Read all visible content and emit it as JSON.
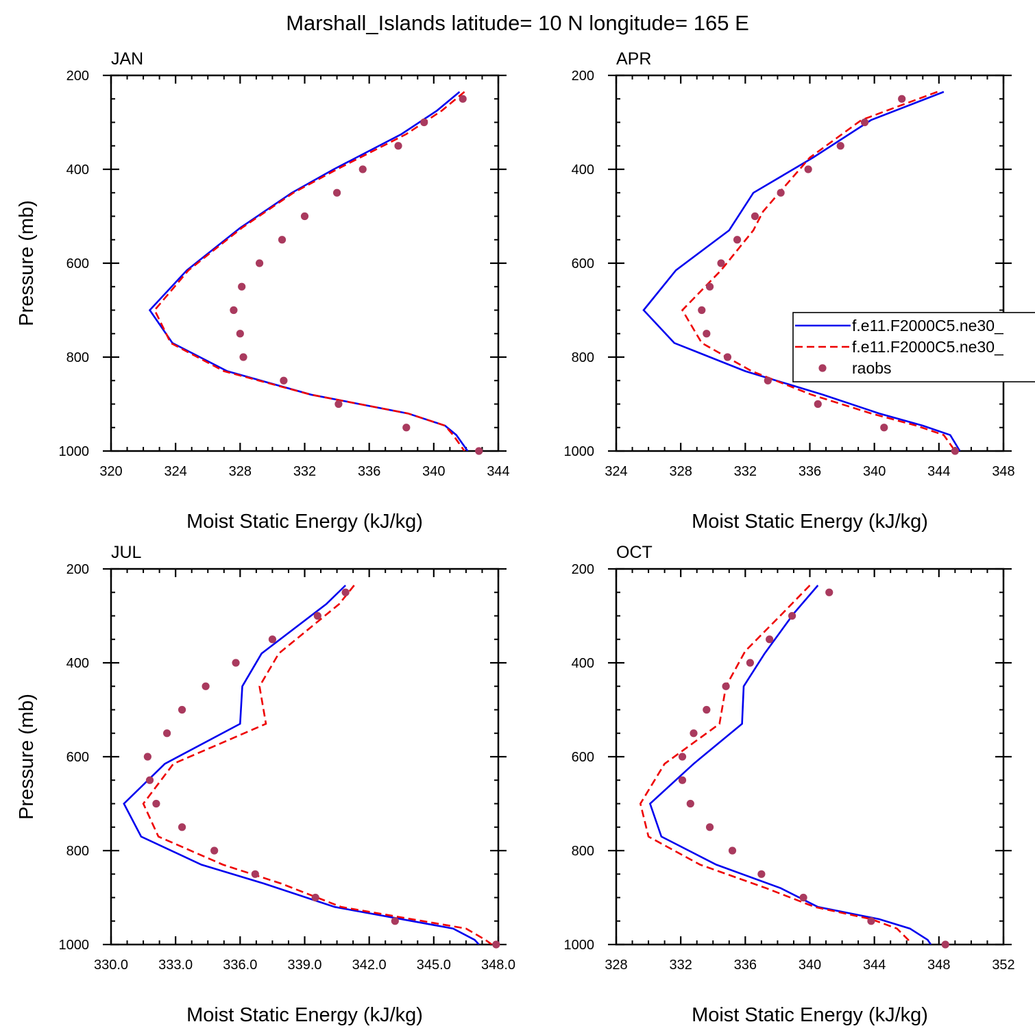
{
  "figure": {
    "title": "Marshall_Islands  latitude= 10 N longitude= 165 E"
  },
  "colors": {
    "model1": "#0000ee",
    "model2": "#ee0000",
    "raobs": "#a93a5e",
    "axis": "#000000"
  },
  "legend": {
    "entries": [
      {
        "label": "f.e11.F2000C5.ne30_",
        "style": "solid",
        "color": "#0000ee"
      },
      {
        "label": "f.e11.F2000C5.ne30_",
        "style": "dashed",
        "color": "#ee0000"
      },
      {
        "label": "raobs",
        "style": "marker",
        "color": "#a93a5e"
      }
    ]
  },
  "chart_data": [
    {
      "type": "line",
      "title": "JAN",
      "xlabel": "Moist Static Energy (kJ/kg)",
      "ylabel": "Pressure (mb)",
      "xlim": [
        320,
        344
      ],
      "ylim": [
        200,
        1000
      ],
      "y_inverted": true,
      "xticks": [
        320,
        324,
        328,
        332,
        336,
        340,
        344
      ],
      "xtick_labels": [
        "320",
        "324",
        "328",
        "332",
        "336",
        "340",
        "344"
      ],
      "yticks": [
        200,
        400,
        600,
        800,
        1000
      ],
      "ytick_labels": [
        "200",
        "400",
        "600",
        "800",
        "1000"
      ],
      "series": [
        {
          "name": "f.e11.F2000C5.ne30_",
          "style": "solid",
          "color": "#0000ee",
          "points": [
            [
              341.6,
              235
            ],
            [
              340.2,
              275
            ],
            [
              338.0,
              325
            ],
            [
              333.8,
              400
            ],
            [
              331.2,
              450
            ],
            [
              328.0,
              525
            ],
            [
              324.7,
              615
            ],
            [
              322.4,
              700
            ],
            [
              323.8,
              770
            ],
            [
              327.2,
              830
            ],
            [
              332.4,
              880
            ],
            [
              338.4,
              920
            ],
            [
              340.7,
              946
            ],
            [
              341.4,
              966
            ],
            [
              342.1,
              1000
            ]
          ]
        },
        {
          "name": "f.e11.F2000C5.ne30_",
          "style": "dashed",
          "color": "#ee0000",
          "points": [
            [
              341.9,
              235
            ],
            [
              340.5,
              275
            ],
            [
              338.3,
              325
            ],
            [
              334.0,
              400
            ],
            [
              331.3,
              450
            ],
            [
              328.1,
              525
            ],
            [
              324.8,
              615
            ],
            [
              322.7,
              700
            ],
            [
              323.7,
              770
            ],
            [
              327.0,
              830
            ],
            [
              332.4,
              880
            ],
            [
              338.4,
              920
            ],
            [
              340.7,
              946
            ],
            [
              341.2,
              966
            ],
            [
              341.9,
              1000
            ]
          ]
        },
        {
          "name": "raobs",
          "style": "marker",
          "color": "#a93a5e",
          "points": [
            [
              341.8,
              250
            ],
            [
              339.4,
              300
            ],
            [
              337.8,
              350
            ],
            [
              335.6,
              400
            ],
            [
              334.0,
              450
            ],
            [
              332.0,
              500
            ],
            [
              330.6,
              550
            ],
            [
              329.2,
              600
            ],
            [
              328.1,
              650
            ],
            [
              327.6,
              700
            ],
            [
              328.0,
              750
            ],
            [
              328.2,
              800
            ],
            [
              330.7,
              850
            ],
            [
              334.1,
              900
            ],
            [
              338.3,
              950
            ],
            [
              342.8,
              1000
            ]
          ]
        }
      ]
    },
    {
      "type": "line",
      "title": "APR",
      "xlabel": "Moist Static Energy (kJ/kg)",
      "ylabel": "",
      "xlim": [
        324,
        348
      ],
      "ylim": [
        200,
        1000
      ],
      "y_inverted": true,
      "xticks": [
        324,
        328,
        332,
        336,
        340,
        344,
        348
      ],
      "xtick_labels": [
        "324",
        "328",
        "332",
        "336",
        "340",
        "344",
        "348"
      ],
      "yticks": [
        200,
        400,
        600,
        800,
        1000
      ],
      "ytick_labels": [
        "200",
        "400",
        "600",
        "800",
        "1000"
      ],
      "series": [
        {
          "name": "f.e11.F2000C5.ne30_",
          "style": "solid",
          "color": "#0000ee",
          "points": [
            [
              344.3,
              235
            ],
            [
              339.8,
              295
            ],
            [
              336.2,
              375
            ],
            [
              332.5,
              450
            ],
            [
              331.0,
              530
            ],
            [
              327.7,
              615
            ],
            [
              325.7,
              700
            ],
            [
              327.6,
              770
            ],
            [
              332.0,
              830
            ],
            [
              336.8,
              880
            ],
            [
              340.3,
              920
            ],
            [
              343.0,
              946
            ],
            [
              344.7,
              966
            ],
            [
              345.3,
              1000
            ]
          ]
        },
        {
          "name": "f.e11.F2000C5.ne30_",
          "style": "dashed",
          "color": "#ee0000",
          "points": [
            [
              343.9,
              235
            ],
            [
              339.2,
              295
            ],
            [
              336.0,
              375
            ],
            [
              334.1,
              450
            ],
            [
              333.1,
              490
            ],
            [
              332.5,
              530
            ],
            [
              330.5,
              615
            ],
            [
              328.1,
              700
            ],
            [
              329.3,
              770
            ],
            [
              332.4,
              830
            ],
            [
              336.1,
              880
            ],
            [
              339.8,
              920
            ],
            [
              342.6,
              946
            ],
            [
              344.3,
              966
            ],
            [
              345.0,
              1000
            ]
          ]
        },
        {
          "name": "raobs",
          "style": "marker",
          "color": "#a93a5e",
          "points": [
            [
              341.7,
              250
            ],
            [
              339.4,
              300
            ],
            [
              337.9,
              350
            ],
            [
              335.9,
              400
            ],
            [
              334.2,
              450
            ],
            [
              332.6,
              500
            ],
            [
              331.5,
              550
            ],
            [
              330.5,
              600
            ],
            [
              329.8,
              650
            ],
            [
              329.3,
              700
            ],
            [
              329.6,
              750
            ],
            [
              330.9,
              800
            ],
            [
              333.4,
              850
            ],
            [
              336.5,
              900
            ],
            [
              340.6,
              950
            ],
            [
              345.0,
              1000
            ]
          ]
        }
      ]
    },
    {
      "type": "line",
      "title": "JUL",
      "xlabel": "Moist Static Energy (kJ/kg)",
      "ylabel": "Pressure (mb)",
      "xlim": [
        330,
        348
      ],
      "ylim": [
        200,
        1000
      ],
      "y_inverted": true,
      "xticks": [
        330,
        333,
        336,
        339,
        342,
        345,
        348
      ],
      "xtick_labels": [
        "330.0",
        "333.0",
        "336.0",
        "339.0",
        "342.0",
        "345.0",
        "348.0"
      ],
      "yticks": [
        200,
        400,
        600,
        800,
        1000
      ],
      "ytick_labels": [
        "200",
        "400",
        "600",
        "800",
        "1000"
      ],
      "series": [
        {
          "name": "f.e11.F2000C5.ne30_",
          "style": "solid",
          "color": "#0000ee",
          "points": [
            [
              340.9,
              235
            ],
            [
              340.0,
              275
            ],
            [
              337.0,
              380
            ],
            [
              336.1,
              450
            ],
            [
              336.0,
              530
            ],
            [
              332.5,
              615
            ],
            [
              330.6,
              700
            ],
            [
              331.4,
              770
            ],
            [
              334.2,
              830
            ],
            [
              337.1,
              870
            ],
            [
              340.4,
              920
            ],
            [
              345.9,
              966
            ],
            [
              346.9,
              990
            ],
            [
              347.1,
              1000
            ]
          ]
        },
        {
          "name": "f.e11.F2000C5.ne30_",
          "style": "dashed",
          "color": "#ee0000",
          "points": [
            [
              341.3,
              235
            ],
            [
              340.6,
              275
            ],
            [
              337.8,
              380
            ],
            [
              336.9,
              450
            ],
            [
              337.2,
              530
            ],
            [
              332.9,
              615
            ],
            [
              331.5,
              700
            ],
            [
              332.2,
              770
            ],
            [
              335.2,
              830
            ],
            [
              337.9,
              870
            ],
            [
              340.7,
              920
            ],
            [
              346.5,
              966
            ],
            [
              347.4,
              990
            ],
            [
              347.7,
              1000
            ]
          ]
        },
        {
          "name": "raobs",
          "style": "marker",
          "color": "#a93a5e",
          "points": [
            [
              340.9,
              250
            ],
            [
              339.6,
              300
            ],
            [
              337.5,
              350
            ],
            [
              335.8,
              400
            ],
            [
              334.4,
              450
            ],
            [
              333.3,
              500
            ],
            [
              332.6,
              550
            ],
            [
              331.7,
              600
            ],
            [
              331.8,
              650
            ],
            [
              332.1,
              700
            ],
            [
              333.3,
              750
            ],
            [
              334.8,
              800
            ],
            [
              336.7,
              850
            ],
            [
              339.5,
              900
            ],
            [
              343.2,
              950
            ],
            [
              347.9,
              1000
            ]
          ]
        }
      ]
    },
    {
      "type": "line",
      "title": "OCT",
      "xlabel": "Moist Static Energy (kJ/kg)",
      "ylabel": "",
      "xlim": [
        328,
        352
      ],
      "ylim": [
        200,
        1000
      ],
      "y_inverted": true,
      "xticks": [
        328,
        332,
        336,
        340,
        344,
        348,
        352
      ],
      "xtick_labels": [
        "328",
        "332",
        "336",
        "340",
        "344",
        "348",
        "352"
      ],
      "yticks": [
        200,
        400,
        600,
        800,
        1000
      ],
      "ytick_labels": [
        "200",
        "400",
        "600",
        "800",
        "1000"
      ],
      "series": [
        {
          "name": "f.e11.F2000C5.ne30_",
          "style": "solid",
          "color": "#0000ee",
          "points": [
            [
              340.5,
              235
            ],
            [
              339.0,
              295
            ],
            [
              337.2,
              380
            ],
            [
              335.9,
              450
            ],
            [
              335.8,
              530
            ],
            [
              332.8,
              615
            ],
            [
              330.1,
              700
            ],
            [
              330.8,
              770
            ],
            [
              334.2,
              830
            ],
            [
              338.2,
              880
            ],
            [
              340.5,
              920
            ],
            [
              344.3,
              946
            ],
            [
              346.2,
              966
            ],
            [
              347.3,
              990
            ],
            [
              347.5,
              1000
            ]
          ]
        },
        {
          "name": "f.e11.F2000C5.ne30_",
          "style": "dashed",
          "color": "#ee0000",
          "points": [
            [
              340.0,
              235
            ],
            [
              338.3,
              295
            ],
            [
              336.0,
              375
            ],
            [
              334.8,
              450
            ],
            [
              334.4,
              530
            ],
            [
              331.0,
              615
            ],
            [
              329.5,
              700
            ],
            [
              330.0,
              770
            ],
            [
              333.2,
              830
            ],
            [
              337.3,
              880
            ],
            [
              340.3,
              920
            ],
            [
              343.8,
              946
            ],
            [
              345.4,
              966
            ],
            [
              346.1,
              990
            ],
            [
              346.2,
              1000
            ]
          ]
        },
        {
          "name": "raobs",
          "style": "marker",
          "color": "#a93a5e",
          "points": [
            [
              341.2,
              250
            ],
            [
              338.9,
              300
            ],
            [
              337.5,
              350
            ],
            [
              336.3,
              400
            ],
            [
              334.8,
              450
            ],
            [
              333.6,
              500
            ],
            [
              332.8,
              550
            ],
            [
              332.1,
              600
            ],
            [
              332.1,
              650
            ],
            [
              332.6,
              700
            ],
            [
              333.8,
              750
            ],
            [
              335.2,
              800
            ],
            [
              337.0,
              850
            ],
            [
              339.6,
              900
            ],
            [
              343.8,
              950
            ],
            [
              348.4,
              1000
            ]
          ]
        }
      ]
    }
  ]
}
